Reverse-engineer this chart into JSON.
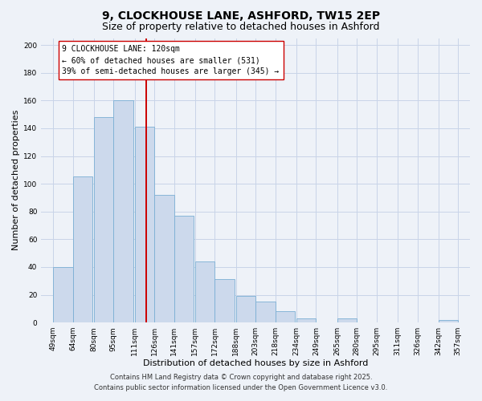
{
  "title": "9, CLOCKHOUSE LANE, ASHFORD, TW15 2EP",
  "subtitle": "Size of property relative to detached houses in Ashford",
  "xlabel": "Distribution of detached houses by size in Ashford",
  "ylabel": "Number of detached properties",
  "bar_left_edges": [
    49,
    64,
    80,
    95,
    111,
    126,
    141,
    157,
    172,
    188,
    203,
    218,
    234,
    249,
    265,
    280,
    295,
    311,
    326,
    342
  ],
  "bar_heights": [
    40,
    105,
    148,
    160,
    141,
    92,
    77,
    44,
    31,
    19,
    15,
    8,
    3,
    0,
    3,
    0,
    0,
    0,
    0,
    2
  ],
  "bin_width": 15,
  "bar_color": "#ccd9ec",
  "bar_edge_color": "#7bafd4",
  "vline_x": 120,
  "vline_color": "#cc0000",
  "annotation_lines": [
    "9 CLOCKHOUSE LANE: 120sqm",
    "← 60% of detached houses are smaller (531)",
    "39% of semi-detached houses are larger (345) →"
  ],
  "ylim": [
    0,
    205
  ],
  "yticks": [
    0,
    20,
    40,
    60,
    80,
    100,
    120,
    140,
    160,
    180,
    200
  ],
  "tick_labels": [
    "49sqm",
    "64sqm",
    "80sqm",
    "95sqm",
    "111sqm",
    "126sqm",
    "141sqm",
    "157sqm",
    "172sqm",
    "188sqm",
    "203sqm",
    "218sqm",
    "234sqm",
    "249sqm",
    "265sqm",
    "280sqm",
    "295sqm",
    "311sqm",
    "326sqm",
    "342sqm",
    "357sqm"
  ],
  "grid_color": "#c8d4e8",
  "background_color": "#eef2f8",
  "footer_lines": [
    "Contains HM Land Registry data © Crown copyright and database right 2025.",
    "Contains public sector information licensed under the Open Government Licence v3.0."
  ],
  "title_fontsize": 10,
  "subtitle_fontsize": 9,
  "axis_label_fontsize": 8,
  "tick_fontsize": 6.5,
  "annotation_fontsize": 7,
  "footer_fontsize": 6
}
